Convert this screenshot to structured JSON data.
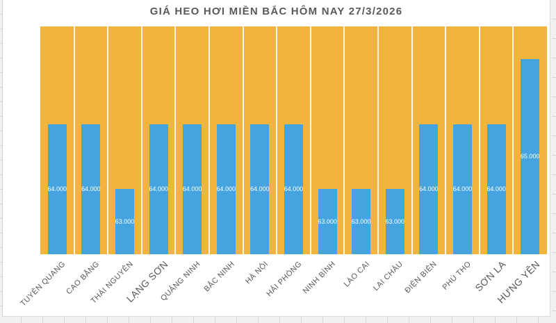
{
  "chart_data": {
    "type": "bar",
    "title": "GIÁ HEO HƠI MIỀN BẮC HÔM NAY 27/3/2026",
    "categories": [
      "TUYÊN QUANG",
      "CAO BẰNG",
      "THÁI NGUYÊN",
      "LẠNG SƠN",
      "QUẢNG NINH",
      "BẮC NINH",
      "HÀ NỘI",
      "HẢI PHÒNG",
      "NINH BÌNH",
      "LÀO CAI",
      "LAI CHÂU",
      "ĐIỆN BIÊN",
      "PHÚ THỌ",
      "SƠN LA",
      "HƯNG YÊN"
    ],
    "values": [
      64000,
      64000,
      63000,
      64000,
      64000,
      64000,
      64000,
      64000,
      63000,
      63000,
      63000,
      64000,
      64000,
      64000,
      65000
    ],
    "value_labels": [
      "64.000",
      "64.000",
      "63.000",
      "64.000",
      "64.000",
      "64.000",
      "64.000",
      "64.000",
      "63.000",
      "63.000",
      "63.000",
      "64.000",
      "64.000",
      "64.000",
      "65.000"
    ],
    "large_label_indices": [
      3,
      13,
      14
    ],
    "xlabel": "",
    "ylabel": "",
    "ylim": [
      62000,
      65500
    ],
    "legend_position": "none",
    "grid": "vertical white separators between categories",
    "value_label_position": "inside-center",
    "colors": {
      "bar": "#45a4df",
      "plot_background": "#f0b43f",
      "title_text": "#595959",
      "axis_label_text": "#595959",
      "value_label_text": "#ffffff",
      "chart_border": "#d9d9d9",
      "worksheet_gridline": "#d7d7d7"
    }
  }
}
